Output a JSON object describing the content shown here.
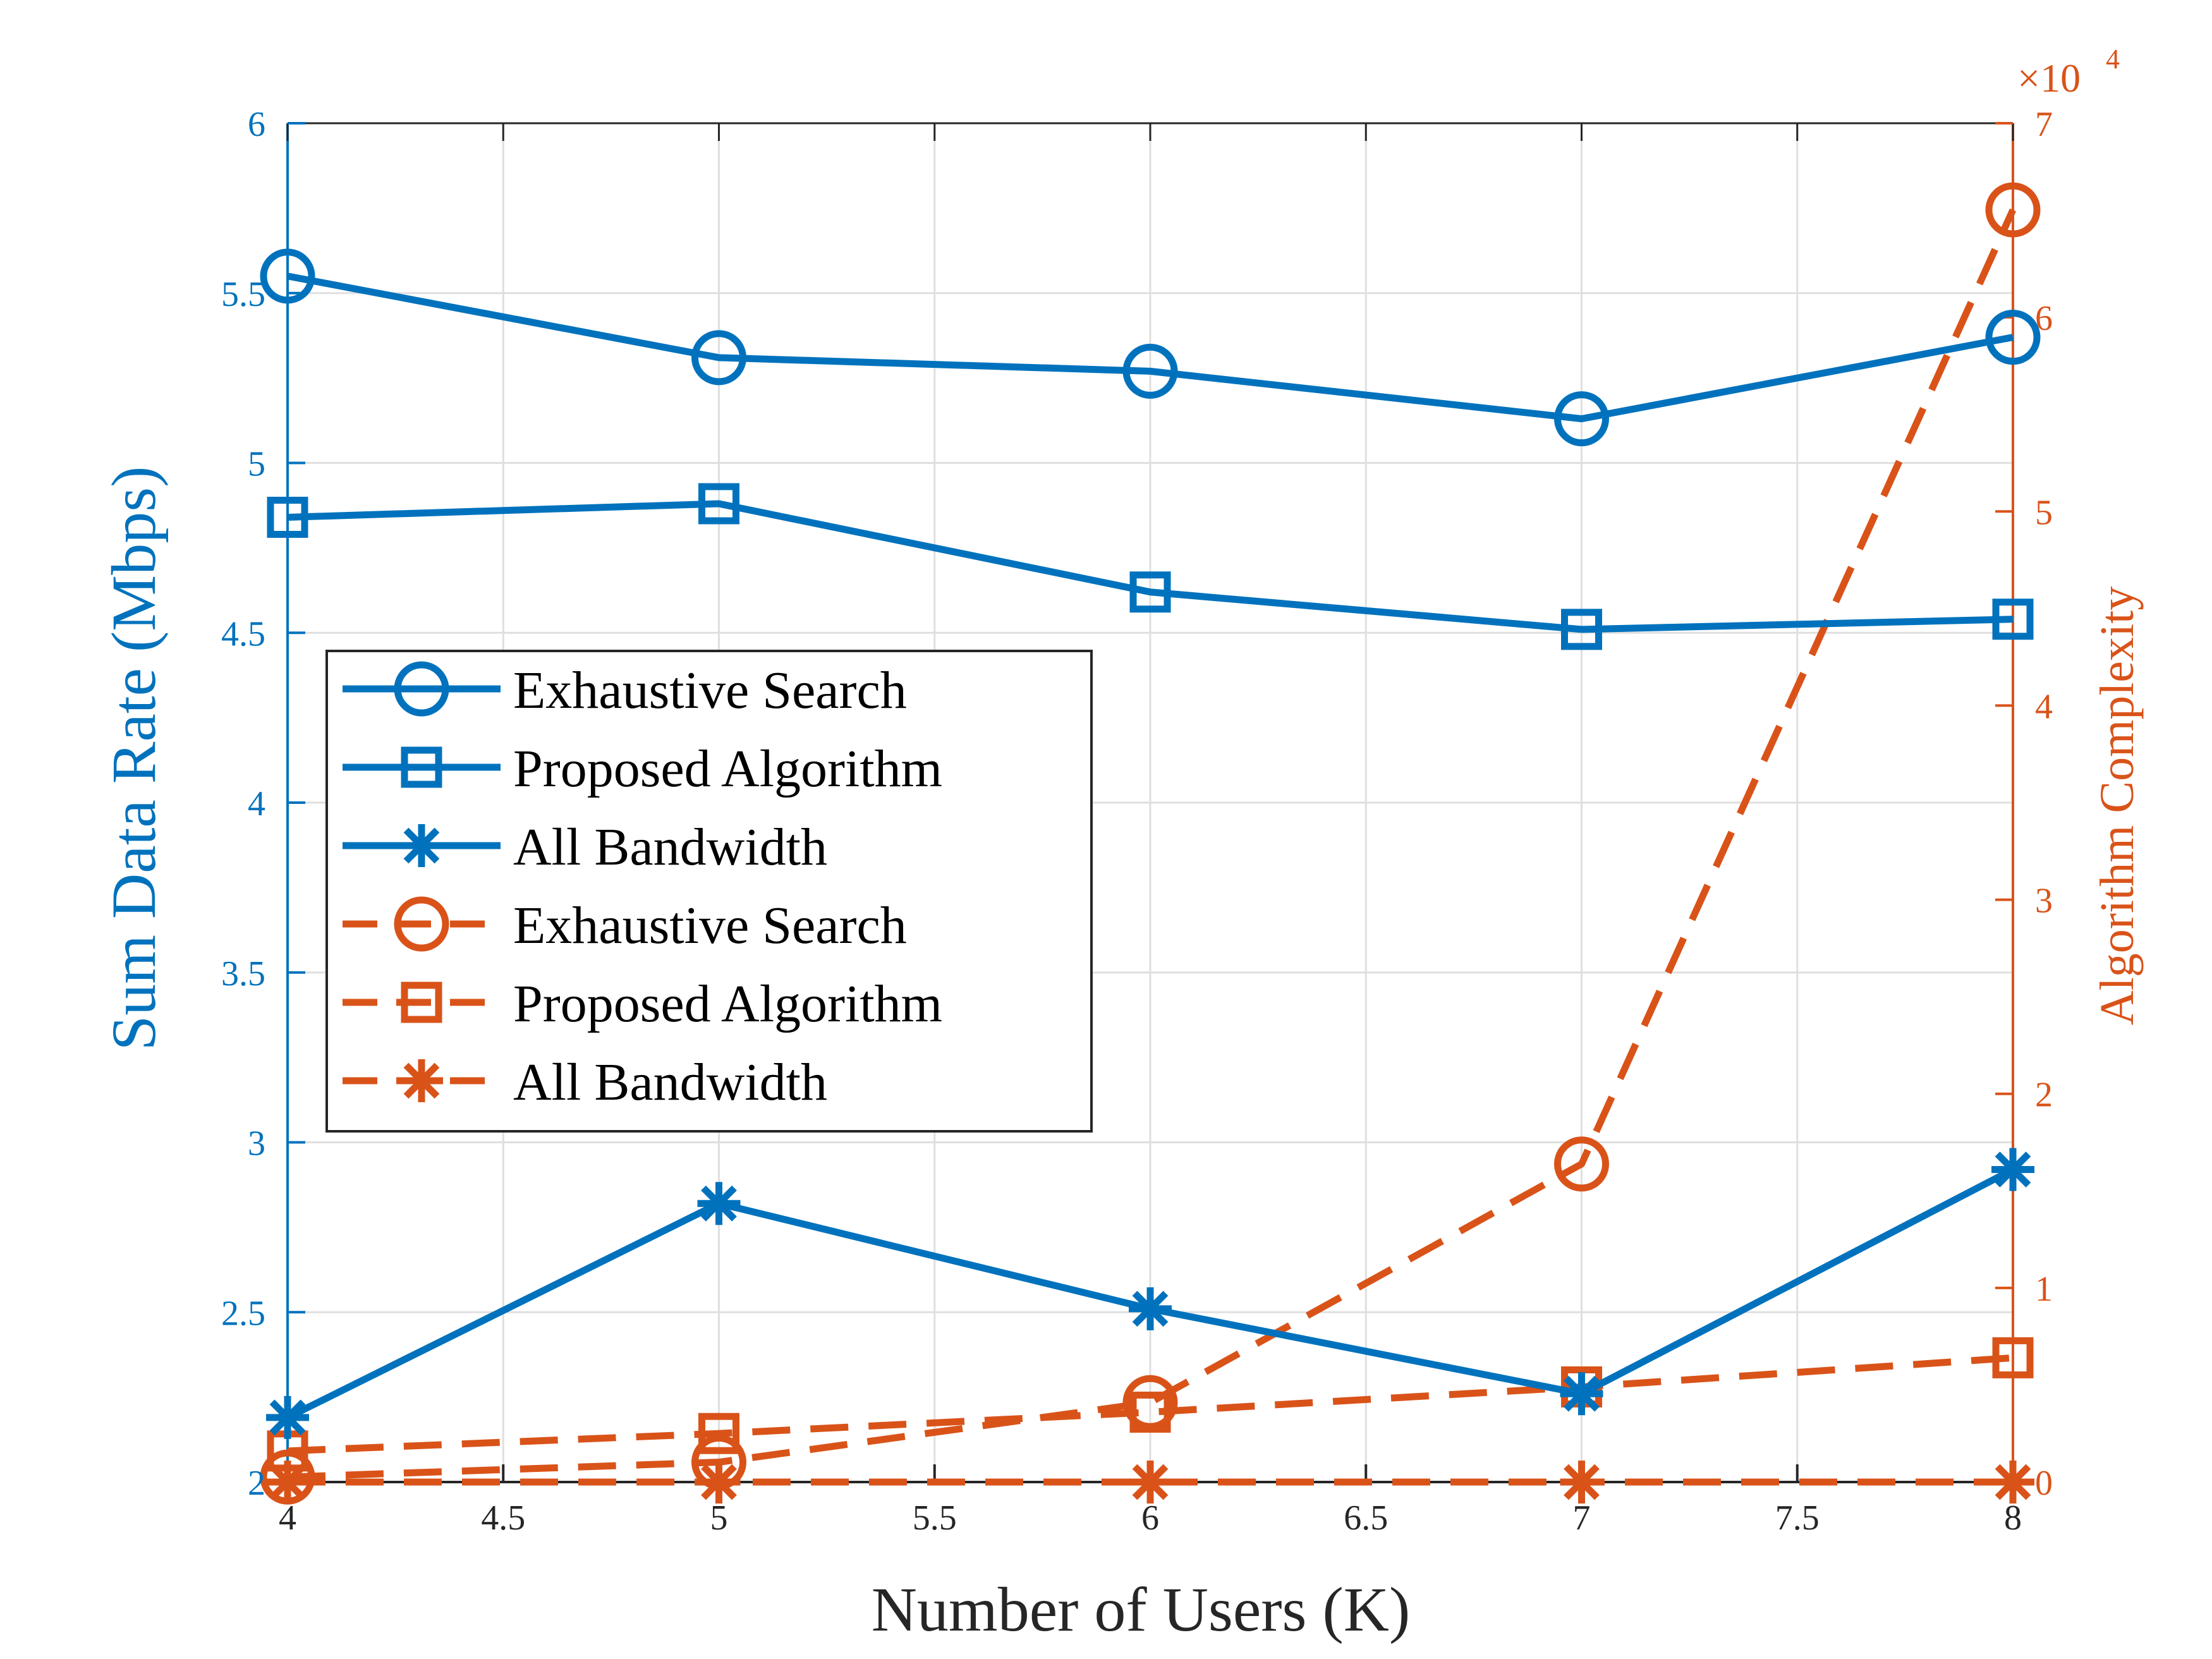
{
  "chart_data": {
    "type": "line",
    "xlabel": "Number of Users (K)",
    "ylabel_left": "Sum Data Rate (Mbps)",
    "ylabel_right": "Algorithm Complexity",
    "right_axis_exponent": "×10",
    "right_axis_exponent_power": "4",
    "xlim": [
      4,
      8
    ],
    "ylim_left": [
      2,
      6
    ],
    "ylim_right": [
      0,
      7
    ],
    "x_ticks": [
      "4",
      "4.5",
      "5",
      "5.5",
      "6",
      "6.5",
      "7",
      "7.5",
      "8"
    ],
    "y_left_ticks": [
      "2",
      "2.5",
      "3",
      "3.5",
      "4",
      "4.5",
      "5",
      "5.5",
      "6"
    ],
    "y_right_ticks": [
      "0",
      "1",
      "2",
      "3",
      "4",
      "5",
      "6",
      "7"
    ],
    "grid": true,
    "legend_position": "center-left",
    "x": [
      4,
      5,
      6,
      7,
      8
    ],
    "series": [
      {
        "name": "Exhaustive Search",
        "axis": "left",
        "marker": "circle",
        "style": "solid",
        "color": "#0072BD",
        "values": [
          5.55,
          5.31,
          5.27,
          5.13,
          5.37
        ]
      },
      {
        "name": "Proposed Algorithm",
        "axis": "left",
        "marker": "square",
        "style": "solid",
        "color": "#0072BD",
        "values": [
          4.84,
          4.88,
          4.62,
          4.51,
          4.54
        ]
      },
      {
        "name": "All Bandwidth",
        "axis": "left",
        "marker": "star",
        "style": "solid",
        "color": "#0072BD",
        "values": [
          2.19,
          2.82,
          2.51,
          2.26,
          2.92
        ]
      },
      {
        "name": "Exhaustive Search",
        "axis": "right",
        "marker": "circle",
        "style": "dashed",
        "color": "#D95319",
        "values": [
          0.0256,
          0.1024,
          0.4096,
          1.6384,
          6.5536
        ]
      },
      {
        "name": "Proposed Algorithm",
        "axis": "right",
        "marker": "square",
        "style": "dashed",
        "color": "#D95319",
        "values": [
          0.16,
          0.25,
          0.36,
          0.49,
          0.64
        ]
      },
      {
        "name": "All Bandwidth",
        "axis": "right",
        "marker": "star",
        "style": "dashed",
        "color": "#D95319",
        "values": [
          0,
          0,
          0,
          0,
          0
        ]
      }
    ]
  }
}
